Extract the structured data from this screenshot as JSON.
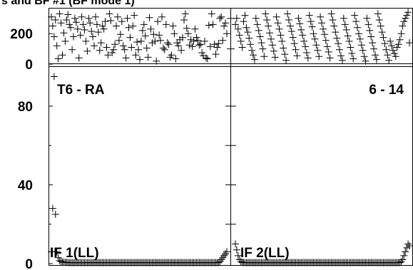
{
  "title": "s and BF #1 (BF mode 1)",
  "chart_data": [
    {
      "type": "scatter",
      "role": "phase-left",
      "ylim": [
        0,
        360
      ],
      "yticks": [
        "200",
        "0"
      ],
      "marker": "+",
      "x": [
        1,
        2,
        3,
        4,
        5,
        6,
        7,
        8,
        9,
        10,
        11,
        12,
        13,
        14,
        15,
        16,
        17,
        18,
        19,
        20,
        21,
        22,
        23,
        24,
        25,
        26,
        27,
        28,
        29,
        30,
        31,
        32,
        33,
        34,
        35,
        36,
        37,
        38,
        39,
        40,
        41,
        42,
        43,
        44,
        45,
        46,
        47,
        48,
        49,
        50,
        51,
        52,
        53,
        54,
        55,
        56,
        57,
        58,
        59,
        60,
        61,
        62,
        63,
        64,
        65,
        66,
        67,
        68,
        69,
        70,
        71,
        72,
        73,
        74,
        75,
        76,
        77,
        78,
        79,
        80,
        81,
        82,
        83,
        84,
        85,
        86,
        87,
        88,
        89,
        90,
        91,
        92,
        93,
        94,
        95,
        96,
        97,
        98,
        99,
        100,
        101,
        102,
        103,
        104,
        105,
        106,
        107,
        108,
        109,
        110,
        111,
        112,
        113,
        114,
        115,
        116,
        117,
        118,
        119,
        120,
        121,
        122,
        123,
        124,
        125,
        126,
        127,
        128
      ],
      "y": [
        310,
        250,
        180,
        290,
        120,
        35,
        330,
        270,
        60,
        205,
        150,
        290,
        325,
        260,
        240,
        95,
        180,
        300,
        275,
        230,
        40,
        190,
        310,
        260,
        225,
        150,
        85,
        300,
        270,
        215,
        180,
        120,
        310,
        260,
        210,
        90,
        140,
        250,
        230,
        280,
        110,
        60,
        330,
        285,
        75,
        95,
        130,
        250,
        310,
        155,
        195,
        280,
        120,
        95,
        40,
        300,
        240,
        175,
        110,
        250,
        320,
        60,
        145,
        95,
        30,
        150,
        220,
        260,
        185,
        105,
        45,
        305,
        230,
        140,
        195,
        150,
        20,
        280,
        190,
        155,
        310,
        105,
        95,
        260,
        140,
        130,
        45,
        60,
        250,
        200,
        35,
        140,
        120,
        160,
        90,
        175,
        290,
        330,
        235,
        200,
        125,
        160,
        115,
        150,
        230,
        175,
        155,
        125,
        130,
        75,
        55,
        150,
        40,
        35,
        255,
        115,
        330,
        260,
        130,
        65,
        110,
        135,
        300,
        310,
        155,
        250,
        270,
        200
      ]
    },
    {
      "type": "scatter",
      "role": "phase-right",
      "ylim": [
        0,
        360
      ],
      "marker": "+",
      "x": [
        1,
        2,
        3,
        4,
        5,
        6,
        7,
        8,
        9,
        10,
        11,
        12,
        13,
        14,
        15,
        16,
        17,
        18,
        19,
        20,
        21,
        22,
        23,
        24,
        25,
        26,
        27,
        28,
        29,
        30,
        31,
        32,
        33,
        34,
        35,
        36,
        37,
        38,
        39,
        40,
        41,
        42,
        43,
        44,
        45,
        46,
        47,
        48,
        49,
        50,
        51,
        52,
        53,
        54,
        55,
        56,
        57,
        58,
        59,
        60,
        61,
        62,
        63,
        64,
        65,
        66,
        67,
        68,
        69,
        70,
        71,
        72,
        73,
        74,
        75,
        76,
        77,
        78,
        79,
        80,
        81,
        82,
        83,
        84,
        85,
        86,
        87,
        88,
        89,
        90,
        91,
        92,
        93,
        94,
        95,
        96,
        97,
        98,
        99,
        100,
        101,
        102,
        103,
        104,
        105,
        106,
        107,
        108,
        109,
        110,
        111,
        112,
        113,
        114,
        115,
        116,
        117,
        118,
        119,
        120,
        121,
        122,
        123,
        124,
        125,
        126,
        127,
        128
      ],
      "y": [
        260,
        300,
        230,
        190,
        150,
        110,
        280,
        320,
        240,
        210,
        170,
        130,
        90,
        60,
        30,
        300,
        260,
        220,
        180,
        140,
        100,
        50,
        330,
        290,
        250,
        205,
        165,
        125,
        85,
        45,
        310,
        270,
        230,
        190,
        150,
        105,
        65,
        25,
        330,
        290,
        250,
        215,
        175,
        135,
        95,
        55,
        300,
        265,
        225,
        190,
        150,
        115,
        75,
        40,
        320,
        280,
        245,
        200,
        165,
        125,
        90,
        50,
        310,
        270,
        230,
        195,
        155,
        115,
        80,
        40,
        330,
        290,
        250,
        210,
        170,
        135,
        95,
        55,
        25,
        300,
        260,
        225,
        185,
        150,
        110,
        70,
        35,
        320,
        280,
        240,
        200,
        165,
        125,
        90,
        50,
        20,
        300,
        260,
        220,
        180,
        140,
        100,
        60,
        30,
        330,
        290,
        250,
        210,
        175,
        135,
        95,
        60,
        25,
        150,
        120,
        90,
        70,
        50,
        110,
        130,
        160,
        200,
        250,
        280,
        300,
        320,
        340,
        140
      ]
    },
    {
      "type": "scatter",
      "role": "magnitude-left",
      "ylim": [
        0,
        97
      ],
      "yticks": [
        "80",
        "40",
        "0"
      ],
      "marker": "+",
      "annotations": [
        "T6 - RA",
        "IF 1(LL)"
      ],
      "x": [
        1,
        2,
        3,
        4,
        5,
        6,
        7,
        8,
        9,
        10,
        11,
        12,
        13,
        14,
        15,
        16,
        17,
        18,
        19,
        20,
        21,
        22,
        23,
        24,
        25,
        26,
        27,
        28,
        29,
        30,
        31,
        32,
        33,
        34,
        35,
        36,
        37,
        38,
        39,
        40,
        41,
        42,
        43,
        44,
        45,
        46,
        47,
        48,
        49,
        50,
        51,
        52,
        53,
        54,
        55,
        56,
        57,
        58,
        59,
        60,
        61,
        62,
        63,
        64,
        65,
        66,
        67,
        68,
        69,
        70,
        71,
        72,
        73,
        74,
        75,
        76,
        77,
        78,
        79,
        80,
        81,
        82,
        83,
        84,
        85,
        86,
        87,
        88,
        89,
        90,
        91,
        92,
        93,
        94,
        95,
        96,
        97,
        98,
        99,
        100,
        101,
        102,
        103,
        104,
        105,
        106,
        107,
        108,
        109,
        110,
        111,
        112,
        113,
        114,
        115,
        116,
        117,
        118,
        119,
        120,
        121,
        122,
        123,
        124,
        125,
        126,
        127,
        128
      ],
      "y": [
        6,
        28,
        95,
        25,
        6,
        3,
        1.5,
        1,
        0.8,
        0.7,
        0.6,
        0.6,
        0.5,
        0.5,
        0.5,
        0.5,
        0.5,
        0.5,
        0.5,
        0.5,
        0.5,
        0.5,
        0.5,
        0.5,
        0.5,
        0.5,
        0.5,
        0.5,
        0.5,
        0.5,
        0.5,
        0.5,
        0.5,
        0.5,
        0.5,
        0.5,
        0.5,
        0.5,
        0.5,
        0.5,
        0.5,
        0.5,
        0.5,
        0.5,
        0.5,
        0.5,
        0.5,
        0.5,
        0.5,
        0.5,
        0.5,
        0.5,
        0.5,
        0.5,
        0.5,
        0.5,
        0.5,
        0.5,
        0.5,
        0.5,
        0.5,
        0.5,
        0.5,
        0.5,
        0.5,
        0.5,
        0.5,
        0.5,
        0.5,
        0.5,
        0.5,
        0.5,
        0.5,
        0.5,
        0.5,
        0.5,
        0.5,
        0.5,
        0.5,
        0.5,
        0.5,
        0.5,
        0.5,
        0.5,
        0.5,
        0.5,
        0.5,
        0.5,
        0.5,
        0.5,
        0.5,
        0.5,
        0.5,
        0.5,
        0.5,
        0.5,
        0.5,
        0.5,
        0.5,
        0.5,
        0.5,
        0.5,
        0.5,
        0.5,
        0.5,
        0.5,
        0.5,
        0.5,
        0.5,
        0.5,
        0.5,
        0.5,
        0.5,
        0.5,
        0.5,
        0.5,
        0.5,
        0.5,
        0.5,
        0.5,
        0.5,
        0.5,
        1,
        2,
        3,
        4,
        5,
        6
      ]
    },
    {
      "type": "scatter",
      "role": "magnitude-right",
      "ylim": [
        0,
        97
      ],
      "marker": "+",
      "annotations": [
        "6 - 14",
        "IF 2(LL)"
      ],
      "x": [
        1,
        2,
        3,
        4,
        5,
        6,
        7,
        8,
        9,
        10,
        11,
        12,
        13,
        14,
        15,
        16,
        17,
        18,
        19,
        20,
        21,
        22,
        23,
        24,
        25,
        26,
        27,
        28,
        29,
        30,
        31,
        32,
        33,
        34,
        35,
        36,
        37,
        38,
        39,
        40,
        41,
        42,
        43,
        44,
        45,
        46,
        47,
        48,
        49,
        50,
        51,
        52,
        53,
        54,
        55,
        56,
        57,
        58,
        59,
        60,
        61,
        62,
        63,
        64,
        65,
        66,
        67,
        68,
        69,
        70,
        71,
        72,
        73,
        74,
        75,
        76,
        77,
        78,
        79,
        80,
        81,
        82,
        83,
        84,
        85,
        86,
        87,
        88,
        89,
        90,
        91,
        92,
        93,
        94,
        95,
        96,
        97,
        98,
        99,
        100,
        101,
        102,
        103,
        104,
        105,
        106,
        107,
        108,
        109,
        110,
        111,
        112,
        113,
        114,
        115,
        116,
        117,
        118,
        119,
        120,
        121,
        122,
        123,
        124,
        125,
        126,
        127,
        128
      ],
      "y": [
        10,
        7,
        4,
        2,
        1,
        0.6,
        0.5,
        0.5,
        0.5,
        0.5,
        0.5,
        0.5,
        0.5,
        0.5,
        0.5,
        0.5,
        0.5,
        0.5,
        0.5,
        0.5,
        0.5,
        0.5,
        0.5,
        0.5,
        0.5,
        0.5,
        0.5,
        0.5,
        0.5,
        0.5,
        0.5,
        0.5,
        0.5,
        0.5,
        0.5,
        0.5,
        0.5,
        0.5,
        0.5,
        0.5,
        0.5,
        0.5,
        0.5,
        0.5,
        0.5,
        0.5,
        0.5,
        0.5,
        0.5,
        0.5,
        0.5,
        0.5,
        0.5,
        0.5,
        0.5,
        0.5,
        0.5,
        0.5,
        0.5,
        0.5,
        0.5,
        0.5,
        0.5,
        0.5,
        0.5,
        0.5,
        0.5,
        0.5,
        0.5,
        0.5,
        0.5,
        0.5,
        0.5,
        0.5,
        0.5,
        0.5,
        0.5,
        0.5,
        0.5,
        0.5,
        0.5,
        0.5,
        0.5,
        0.5,
        0.5,
        0.5,
        0.5,
        0.5,
        0.5,
        0.5,
        0.5,
        0.5,
        0.5,
        0.5,
        0.5,
        0.5,
        0.5,
        0.5,
        0.5,
        0.5,
        0.5,
        0.5,
        0.5,
        0.5,
        0.5,
        0.5,
        0.5,
        0.5,
        0.5,
        0.5,
        0.5,
        0.5,
        0.5,
        0.5,
        0.5,
        0.5,
        0.5,
        0.5,
        0.5,
        0.5,
        0.5,
        1,
        2,
        4,
        6,
        8,
        10,
        9
      ]
    }
  ]
}
